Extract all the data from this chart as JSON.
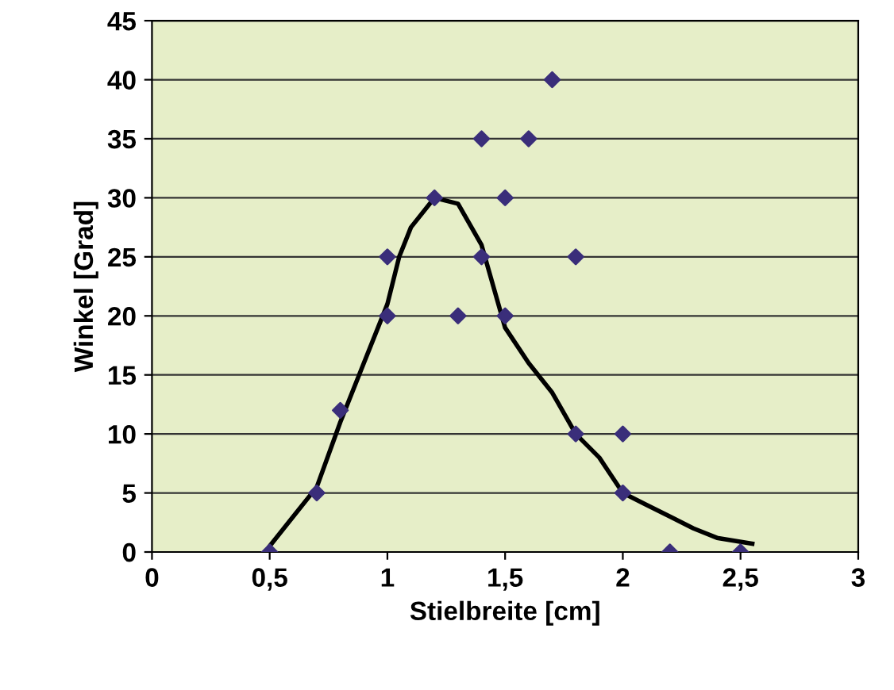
{
  "chart_data": {
    "type": "scatter",
    "xlabel": "Stielbreite [cm]",
    "ylabel": "Winkel [Grad]",
    "xlim": [
      0,
      3
    ],
    "ylim": [
      0,
      45
    ],
    "xticks": [
      0,
      {
        "value": 0.5,
        "label": "0,5"
      },
      1,
      {
        "value": 1.5,
        "label": "1,5"
      },
      2,
      {
        "value": 2.5,
        "label": "2,5"
      },
      3
    ],
    "yticks": [
      0,
      5,
      10,
      15,
      20,
      25,
      30,
      35,
      40,
      45
    ],
    "grid": "y",
    "series": [
      {
        "color": "#3a2e7a",
        "marker": "diamond",
        "x": [
          0.5,
          0.7,
          0.8,
          1.0,
          1.0,
          1.2,
          1.3,
          1.4,
          1.4,
          1.5,
          1.5,
          1.6,
          1.7,
          1.8,
          1.8,
          2.0,
          2.0,
          2.2,
          2.5
        ],
        "values": [
          0,
          5,
          12,
          25,
          20,
          30,
          20,
          35,
          25,
          30,
          20,
          35,
          40,
          25,
          10,
          10,
          5,
          0,
          0
        ]
      },
      {
        "type": "line",
        "color": "#000000",
        "marker": "none",
        "line_style": "solid",
        "x": [
          0.5,
          0.6,
          0.7,
          0.8,
          0.9,
          1.0,
          1.05,
          1.1,
          1.2,
          1.3,
          1.4,
          1.5,
          1.6,
          1.7,
          1.8,
          1.9,
          2.0,
          2.1,
          2.2,
          2.3,
          2.4,
          2.55
        ],
        "values": [
          0.5,
          3,
          5.5,
          11,
          16,
          21,
          25,
          27.5,
          30,
          29.5,
          26,
          19,
          16,
          13.5,
          10,
          8,
          5,
          4,
          3,
          2,
          1.2,
          0.7
        ]
      }
    ]
  }
}
